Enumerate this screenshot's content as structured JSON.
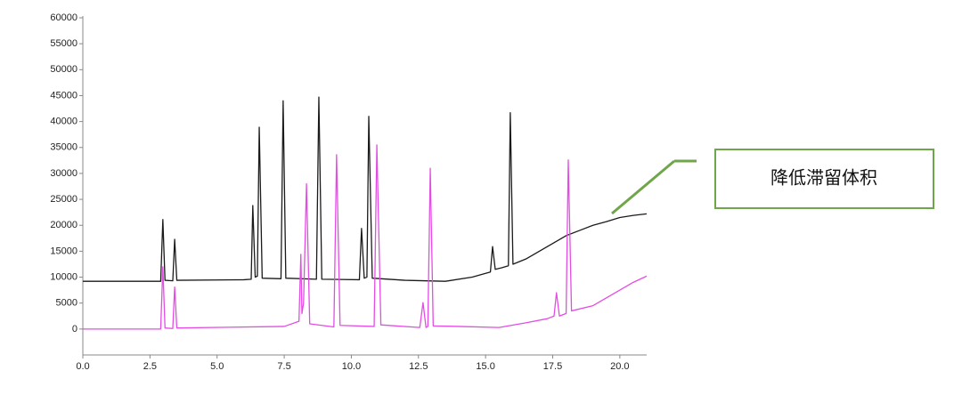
{
  "chart_data": {
    "type": "line",
    "xlim": [
      0,
      21
    ],
    "ylim": [
      -5000,
      60000
    ],
    "xticks": [
      {
        "value": 0,
        "label": "0.0"
      },
      2.5,
      {
        "value": 5,
        "label": "5.0"
      },
      7.5,
      {
        "value": 10,
        "label": "10.0"
      },
      12.5,
      {
        "value": 15,
        "label": "15.0"
      },
      17.5,
      {
        "value": 20,
        "label": "20.0"
      }
    ],
    "yticks": [
      0,
      5000,
      10000,
      15000,
      20000,
      25000,
      30000,
      35000,
      40000,
      45000,
      50000,
      55000,
      60000
    ],
    "annotation": "降低滞留体积",
    "series": [
      {
        "color": "#1a1a1a",
        "x": [
          0,
          2.9,
          2.98,
          3.06,
          3.35,
          3.42,
          3.5,
          6.0,
          6.27,
          6.33,
          6.42,
          6.5,
          6.57,
          6.68,
          7.38,
          7.46,
          7.56,
          8.7,
          8.79,
          8.9,
          10.3,
          10.38,
          10.48,
          10.58,
          10.65,
          10.78,
          12.0,
          13.5,
          14.5,
          15.18,
          15.26,
          15.36,
          15.6,
          15.85,
          15.92,
          16.02,
          16.5,
          17.0,
          17.5,
          18.0,
          18.5,
          19.0,
          19.5,
          20.0,
          20.5,
          21.0
        ],
        "values": [
          9200,
          9200,
          21100,
          9400,
          9300,
          17300,
          9400,
          9500,
          9600,
          23800,
          10000,
          10200,
          38900,
          9800,
          9700,
          44000,
          9800,
          9600,
          44700,
          9600,
          9500,
          19400,
          9800,
          10000,
          41000,
          9800,
          9400,
          9200,
          10000,
          11000,
          15900,
          11500,
          11800,
          12200,
          41700,
          12500,
          13500,
          15000,
          16500,
          18000,
          19000,
          20000,
          20700,
          21500,
          21900,
          22200
        ]
      },
      {
        "color": "#e34de3",
        "x": [
          0,
          2.9,
          2.98,
          3.06,
          3.35,
          3.42,
          3.5,
          7.5,
          8.05,
          8.12,
          8.16,
          8.22,
          8.33,
          8.45,
          9.35,
          9.45,
          9.58,
          10.85,
          10.95,
          11.1,
          12.55,
          12.67,
          12.78,
          12.85,
          12.94,
          13.05,
          14.0,
          15.5,
          16.5,
          17.3,
          17.55,
          17.64,
          17.75,
          18.0,
          18.08,
          18.2,
          19.0,
          19.5,
          20.0,
          20.5,
          21.0
        ],
        "values": [
          0,
          0,
          12000,
          200,
          100,
          8100,
          200,
          500,
          1500,
          14400,
          3000,
          5000,
          28000,
          1000,
          400,
          33600,
          700,
          500,
          35500,
          800,
          300,
          5100,
          300,
          500,
          31000,
          600,
          500,
          300,
          1200,
          2000,
          2500,
          7000,
          2500,
          3000,
          32600,
          3500,
          4500,
          6000,
          7500,
          9000,
          10200
        ]
      }
    ]
  }
}
